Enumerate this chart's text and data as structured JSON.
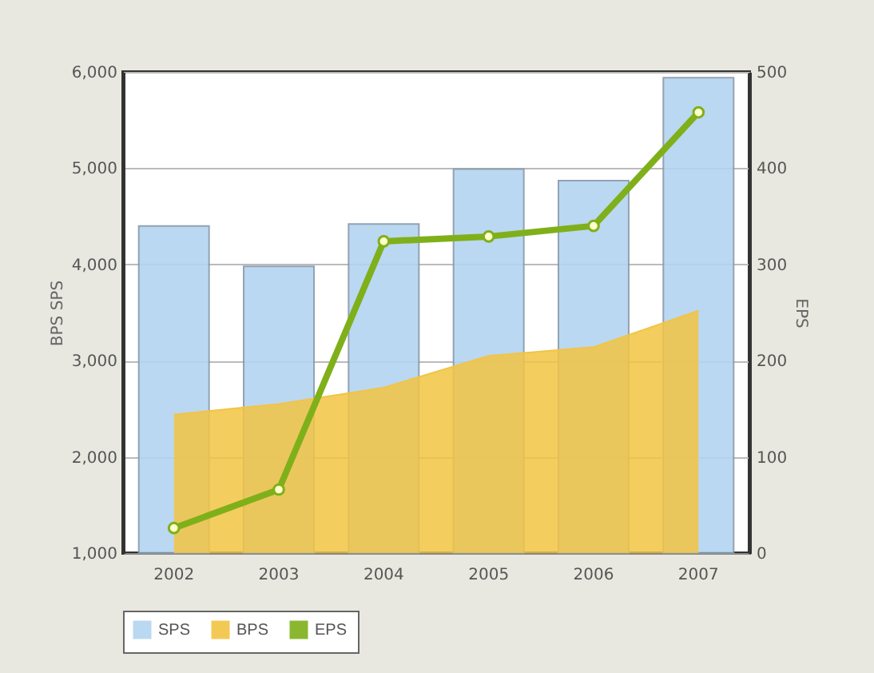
{
  "chart_data": {
    "type": "bar",
    "categories": [
      "2002",
      "2003",
      "2004",
      "2005",
      "2006",
      "2007"
    ],
    "series": [
      {
        "name": "SPS",
        "color": "#b3d4f0",
        "values": [
          4400,
          3980,
          4420,
          4990,
          4870,
          5940
        ]
      },
      {
        "name": "BPS",
        "type": "area",
        "color": "#f2c443",
        "values": [
          2440,
          2550,
          2720,
          3050,
          3140,
          3520
        ]
      },
      {
        "name": "EPS",
        "type": "line",
        "axis": "y2",
        "color": "#7fb01a",
        "marker": "circle",
        "line_style": "solid",
        "values": [
          26,
          66,
          324,
          329,
          340,
          458
        ]
      }
    ],
    "ylabel": "BPS   SPS",
    "y2label": "EPS",
    "ylim": [
      1000,
      6000
    ],
    "yticks": [
      {
        "value": 1000,
        "label": "1,000"
      },
      {
        "value": 2000,
        "label": "2,000"
      },
      {
        "value": 3000,
        "label": "3,000"
      },
      {
        "value": 4000,
        "label": "4,000"
      },
      {
        "value": 5000,
        "label": "5,000"
      },
      {
        "value": 6000,
        "label": "6,000"
      }
    ],
    "y2lim": [
      0,
      500
    ],
    "y2ticks": [
      0,
      100,
      200,
      300,
      400,
      500
    ],
    "grid": "y",
    "legend": "bottom"
  }
}
